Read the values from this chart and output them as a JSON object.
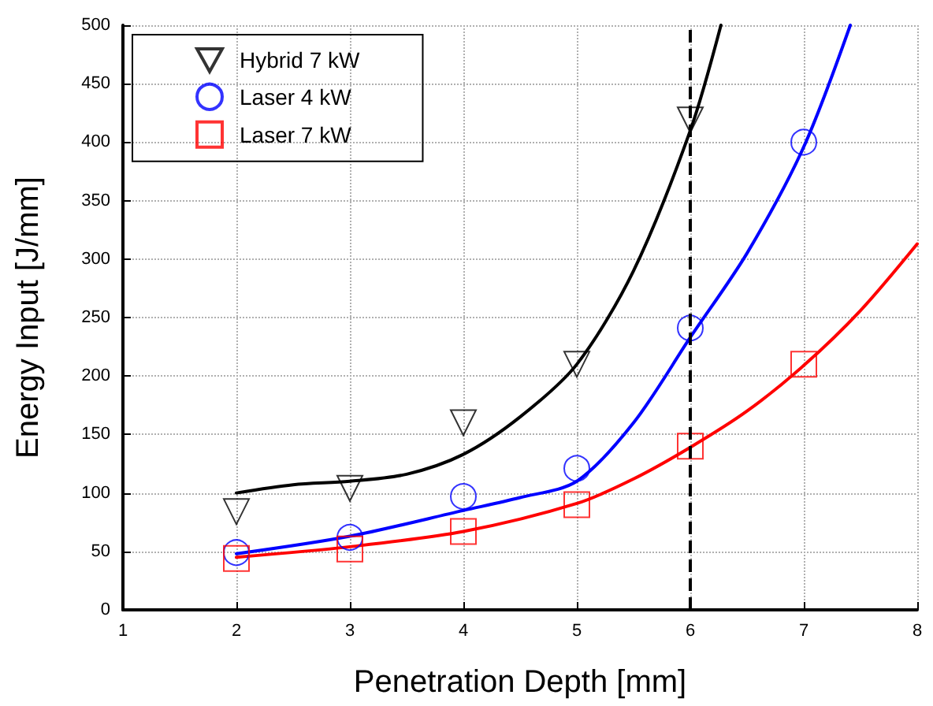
{
  "chart_data": {
    "type": "scatter",
    "xlabel": "Penetration Depth [mm]",
    "ylabel": "Energy Input [J/mm]",
    "xlim": [
      1,
      8
    ],
    "xticks": [
      1,
      2,
      3,
      4,
      5,
      6,
      7,
      8
    ],
    "ylim": [
      0,
      500
    ],
    "yticks": [
      0,
      50,
      100,
      150,
      200,
      250,
      300,
      350,
      400,
      450,
      500
    ],
    "grid": true,
    "legend": "top left",
    "series": [
      {
        "name": "Hybrid 7 kW",
        "marker": "triangle",
        "color": "#000000",
        "x": [
          2,
          3,
          4,
          5,
          6
        ],
        "values": [
          84,
          104,
          160,
          210,
          419
        ]
      },
      {
        "name": "Laser 4 kW",
        "marker": "circle",
        "color": "#0000ff",
        "x": [
          2,
          3,
          4,
          5,
          6,
          7
        ],
        "values": [
          49,
          62,
          97,
          121,
          241,
          400
        ]
      },
      {
        "name": "Laser 7 kW",
        "marker": "square",
        "color": "#ff0000",
        "x": [
          2,
          3,
          4,
          5,
          6,
          7
        ],
        "values": [
          44,
          52,
          67,
          90,
          140,
          210
        ]
      },
      {
        "type": "line",
        "line_style": "solid",
        "color": "#000000",
        "x": [
          2,
          2.5,
          3,
          3.5,
          4,
          4.5,
          5,
          5.5,
          6,
          6.27
        ],
        "values": [
          100,
          107,
          110,
          116,
          133,
          165,
          210,
          290,
          410,
          500
        ]
      },
      {
        "type": "line",
        "line_style": "solid",
        "color": "#0000ff",
        "x": [
          2,
          3,
          4,
          4.5,
          5,
          5.5,
          6,
          6.5,
          7,
          7.41
        ],
        "values": [
          48,
          63,
          85,
          96,
          110,
          160,
          233,
          305,
          396,
          500
        ]
      },
      {
        "type": "line",
        "line_style": "solid",
        "color": "#ff0000",
        "x": [
          2,
          3,
          4,
          5,
          5.5,
          6,
          6.5,
          7,
          7.5,
          8
        ],
        "values": [
          45,
          54,
          67,
          91,
          112,
          139,
          170,
          209,
          256,
          313
        ]
      }
    ],
    "ref_lines": [
      {
        "axis": "x",
        "value": 6,
        "color": "#000000",
        "line_style": "dashed"
      }
    ]
  }
}
